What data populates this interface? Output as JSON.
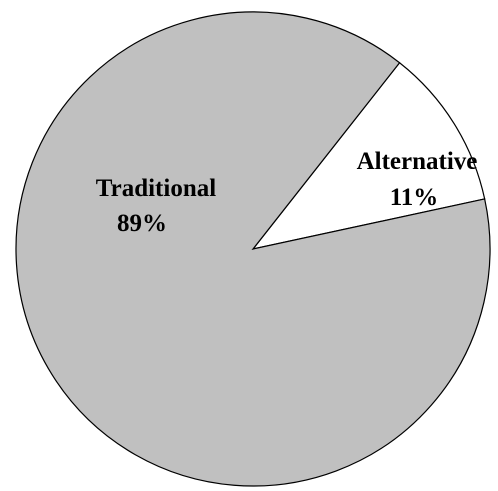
{
  "chart_data": {
    "type": "pie",
    "start_angle_deg": 51.8,
    "direction": "clockwise",
    "slices": [
      {
        "name": "Alternative",
        "value": 11,
        "value_label": "11%",
        "color": "#ffffff"
      },
      {
        "name": "Traditional",
        "value": 89,
        "value_label": "89%",
        "color": "#c0c0c0"
      }
    ],
    "title": "",
    "legend": "none",
    "outline_color": "#000000"
  }
}
